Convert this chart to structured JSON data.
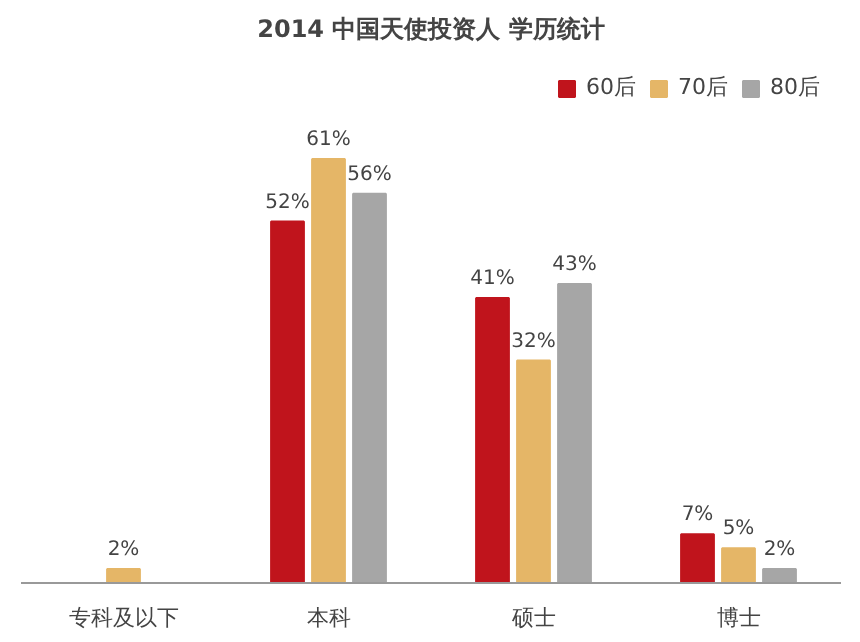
{
  "chart_data": {
    "type": "bar",
    "title": "2014 中国天使投资人 学历统计",
    "categories": [
      "专科及以下",
      "本科",
      "硕士",
      "博士"
    ],
    "series": [
      {
        "name": "60后",
        "color": "#c0141c",
        "values": [
          null,
          52,
          41,
          7
        ],
        "value_labels": [
          null,
          "52%",
          "41%",
          "7%"
        ]
      },
      {
        "name": "70后",
        "color": "#e5b667",
        "values": [
          2,
          61,
          32,
          5
        ],
        "value_labels": [
          "2%",
          "61%",
          "32%",
          "5%"
        ]
      },
      {
        "name": "80后",
        "color": "#a6a6a6",
        "values": [
          null,
          56,
          43,
          2
        ],
        "value_labels": [
          null,
          "56%",
          "43%",
          "2%"
        ]
      }
    ],
    "legend": "top right",
    "grid": false
  }
}
